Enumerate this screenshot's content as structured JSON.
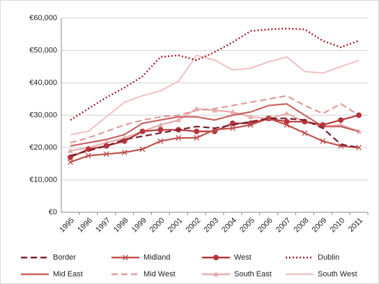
{
  "chart_data": {
    "type": "line",
    "categories": [
      "1995",
      "1996",
      "1997",
      "1998",
      "1999",
      "2000",
      "2001",
      "2002",
      "2003",
      "2004",
      "2005",
      "2006",
      "2007",
      "2008",
      "2009",
      "2010",
      "2011"
    ],
    "ylim": [
      0,
      60000
    ],
    "yticks": [
      {
        "value": 0,
        "label": "€0"
      },
      {
        "value": 10000,
        "label": "€10,000"
      },
      {
        "value": 20000,
        "label": "€20,000"
      },
      {
        "value": 30000,
        "label": "€30,000"
      },
      {
        "value": 40000,
        "label": "€40,000"
      },
      {
        "value": 50000,
        "label": "€50,000"
      },
      {
        "value": 60000,
        "label": "€60,000"
      }
    ],
    "grid": true,
    "legend": "bottom",
    "series": [
      {
        "name": "Border",
        "color": "#7b1f2a",
        "line_style": "dashed",
        "marker": "none",
        "values": [
          17500,
          19000,
          20500,
          22500,
          23500,
          24500,
          25500,
          26500,
          26000,
          27000,
          28000,
          29000,
          29000,
          28500,
          26000,
          21000,
          20000
        ]
      },
      {
        "name": "Midland",
        "color": "#c0504d",
        "line_style": "solid",
        "marker": "x",
        "values": [
          15500,
          17500,
          18000,
          18500,
          19500,
          22000,
          23000,
          23000,
          25500,
          26000,
          27000,
          29000,
          27000,
          24500,
          22000,
          20500,
          20000
        ]
      },
      {
        "name": "West",
        "color": "#b5363a",
        "line_style": "solid",
        "marker": "circle",
        "values": [
          17000,
          19500,
          20500,
          22000,
          25000,
          25500,
          25500,
          25000,
          25000,
          27500,
          27500,
          29000,
          28000,
          28000,
          27000,
          28500,
          30000
        ]
      },
      {
        "name": "Dublin",
        "color": "#a01c22",
        "line_style": "dotted",
        "marker": "none",
        "values": [
          28500,
          32000,
          35500,
          38500,
          42000,
          48000,
          48500,
          47000,
          49500,
          52500,
          56000,
          56500,
          56800,
          56500,
          53000,
          51000,
          53000
        ]
      },
      {
        "name": "Mid East",
        "color": "#c96060",
        "line_style": "solid",
        "marker": "none",
        "values": [
          20500,
          21500,
          22500,
          24000,
          27500,
          28500,
          29500,
          29500,
          28500,
          30000,
          31000,
          33000,
          33500,
          30000,
          26500,
          26500,
          25000
        ]
      },
      {
        "name": "Mid West",
        "color": "#e09a9a",
        "line_style": "dashed",
        "marker": "none",
        "values": [
          21500,
          23000,
          25000,
          27000,
          28500,
          29500,
          30000,
          31500,
          32000,
          33000,
          34000,
          35000,
          36000,
          33000,
          30500,
          33500,
          30000
        ]
      },
      {
        "name": "South East",
        "color": "#e8acac",
        "line_style": "solid",
        "marker": "triangle",
        "values": [
          19000,
          20000,
          21500,
          23000,
          25000,
          27000,
          28500,
          32000,
          31500,
          31000,
          29500,
          29000,
          30500,
          28000,
          26500,
          27000,
          25000
        ]
      },
      {
        "name": "South West",
        "color": "#f0c4c4",
        "line_style": "solid",
        "marker": "none",
        "values": [
          24000,
          25000,
          29500,
          34000,
          36000,
          37500,
          40500,
          48500,
          47000,
          44000,
          44500,
          46500,
          48000,
          43500,
          43000,
          45000,
          47000
        ]
      }
    ]
  }
}
